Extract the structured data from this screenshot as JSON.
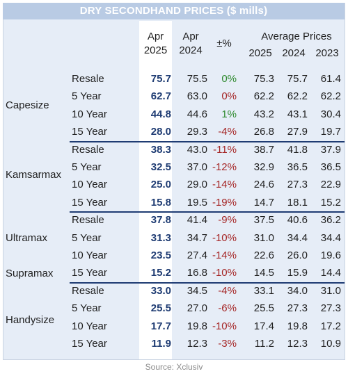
{
  "title": "DRY SECONDHAND PRICES ($ mills)",
  "headers": {
    "apr_2025": [
      "Apr",
      "2025"
    ],
    "apr_2024": [
      "Apr",
      "2024"
    ],
    "pct": "±%",
    "avg_title": "Average Prices",
    "avg_years": [
      "2025",
      "2024",
      "2023"
    ]
  },
  "groups": [
    {
      "label": "Capesize",
      "rows": [
        {
          "age": "Resale",
          "apr2025": "75.7",
          "apr2024": "75.5",
          "pct": "0%",
          "trend": "pos",
          "a2025": "75.3",
          "a2024": "75.7",
          "a2023": "61.4"
        },
        {
          "age": "5 Year",
          "apr2025": "62.7",
          "apr2024": "63.0",
          "pct": "0%",
          "trend": "neg",
          "a2025": "62.2",
          "a2024": "62.2",
          "a2023": "62.2"
        },
        {
          "age": "10 Year",
          "apr2025": "44.8",
          "apr2024": "44.6",
          "pct": "1%",
          "trend": "pos",
          "a2025": "43.2",
          "a2024": "43.1",
          "a2023": "30.4"
        },
        {
          "age": "15 Year",
          "apr2025": "28.0",
          "apr2024": "29.3",
          "pct": "-4%",
          "trend": "neg",
          "a2025": "26.8",
          "a2024": "27.9",
          "a2023": "19.7"
        }
      ]
    },
    {
      "label": "Kamsarmax",
      "rows": [
        {
          "age": "Resale",
          "apr2025": "38.3",
          "apr2024": "43.0",
          "pct": "-11%",
          "trend": "neg",
          "a2025": "38.7",
          "a2024": "41.8",
          "a2023": "37.9"
        },
        {
          "age": "5 Year",
          "apr2025": "32.5",
          "apr2024": "37.0",
          "pct": "-12%",
          "trend": "neg",
          "a2025": "32.9",
          "a2024": "36.5",
          "a2023": "36.5"
        },
        {
          "age": "10 Year",
          "apr2025": "25.0",
          "apr2024": "29.0",
          "pct": "-14%",
          "trend": "neg",
          "a2025": "24.6",
          "a2024": "27.3",
          "a2023": "22.9"
        },
        {
          "age": "15 Year",
          "apr2025": "15.8",
          "apr2024": "19.5",
          "pct": "-19%",
          "trend": "neg",
          "a2025": "14.7",
          "a2024": "18.1",
          "a2023": "15.2"
        }
      ]
    },
    {
      "label": "Ultramax",
      "label2": "Supramax",
      "rows": [
        {
          "age": "Resale",
          "apr2025": "37.8",
          "apr2024": "41.4",
          "pct": "-9%",
          "trend": "neg",
          "a2025": "37.5",
          "a2024": "40.6",
          "a2023": "36.2"
        },
        {
          "age": "5 Year",
          "apr2025": "31.3",
          "apr2024": "34.7",
          "pct": "-10%",
          "trend": "neg",
          "a2025": "31.0",
          "a2024": "34.4",
          "a2023": "34.4"
        },
        {
          "age": "10 Year",
          "apr2025": "23.5",
          "apr2024": "27.4",
          "pct": "-14%",
          "trend": "neg",
          "a2025": "22.6",
          "a2024": "26.0",
          "a2023": "19.6"
        },
        {
          "age": "15 Year",
          "apr2025": "15.2",
          "apr2024": "16.8",
          "pct": "-10%",
          "trend": "neg",
          "a2025": "14.5",
          "a2024": "15.9",
          "a2023": "14.4"
        }
      ]
    },
    {
      "label": "Handysize",
      "rows": [
        {
          "age": "Resale",
          "apr2025": "33.0",
          "apr2024": "34.5",
          "pct": "-4%",
          "trend": "neg",
          "a2025": "33.1",
          "a2024": "34.0",
          "a2023": "31.0"
        },
        {
          "age": "5 Year",
          "apr2025": "25.5",
          "apr2024": "27.0",
          "pct": "-6%",
          "trend": "neg",
          "a2025": "25.5",
          "a2024": "27.3",
          "a2023": "27.3"
        },
        {
          "age": "10 Year",
          "apr2025": "17.7",
          "apr2024": "19.8",
          "pct": "-10%",
          "trend": "neg",
          "a2025": "17.4",
          "a2024": "19.8",
          "a2023": "17.2"
        },
        {
          "age": "15 Year",
          "apr2025": "11.9",
          "apr2024": "12.3",
          "pct": "-3%",
          "trend": "neg",
          "a2025": "11.2",
          "a2024": "12.3",
          "a2023": "10.9"
        }
      ]
    }
  ],
  "source": "Source: Xclusiv",
  "colors": {
    "current": "#1f3c73",
    "positive": "#2f8a2f",
    "negative": "#a52626",
    "title_bg": "#b9cbe4",
    "panel_bg": "#e6edf7"
  }
}
